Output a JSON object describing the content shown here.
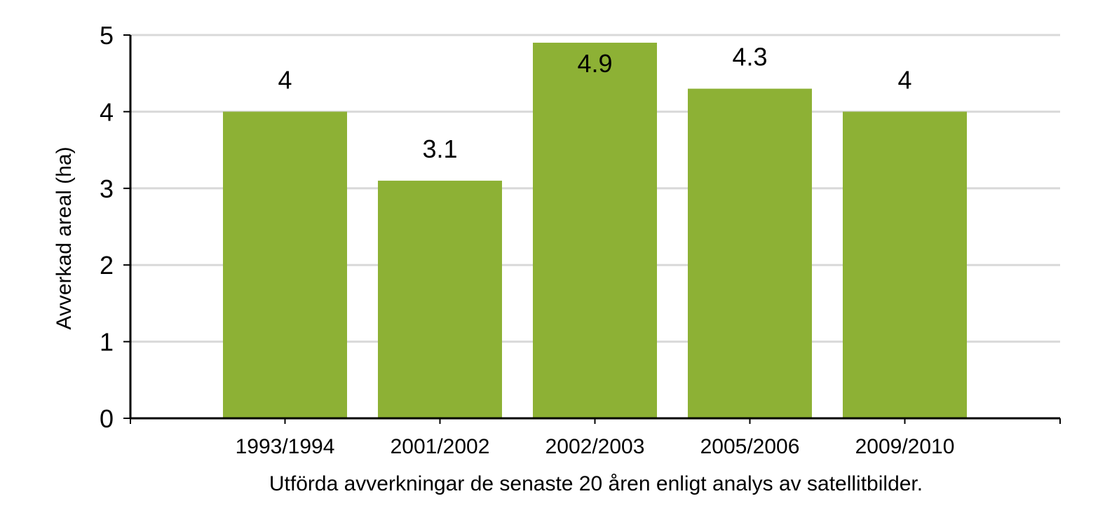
{
  "chart_data": {
    "type": "bar",
    "categories": [
      "1993/1994",
      "2001/2002",
      "2002/2003",
      "2005/2006",
      "2009/2010"
    ],
    "values": [
      4,
      3.1,
      4.9,
      4.3,
      4
    ],
    "value_labels": [
      "4",
      "3.1",
      "4.9",
      "4.3",
      "4"
    ],
    "title": "",
    "xlabel": "Utförda avverkningar de senaste 20 åren enligt analys av satellitbilder.",
    "ylabel": "Avverkad areal (ha)",
    "ylim": [
      0,
      5
    ],
    "yticks": [
      "0",
      "1",
      "2",
      "3",
      "4",
      "5"
    ],
    "grid": true,
    "legend": "none",
    "colors": {
      "bar": "#8DB135",
      "grid": "#D9D9D9",
      "axis": "#000000"
    }
  }
}
